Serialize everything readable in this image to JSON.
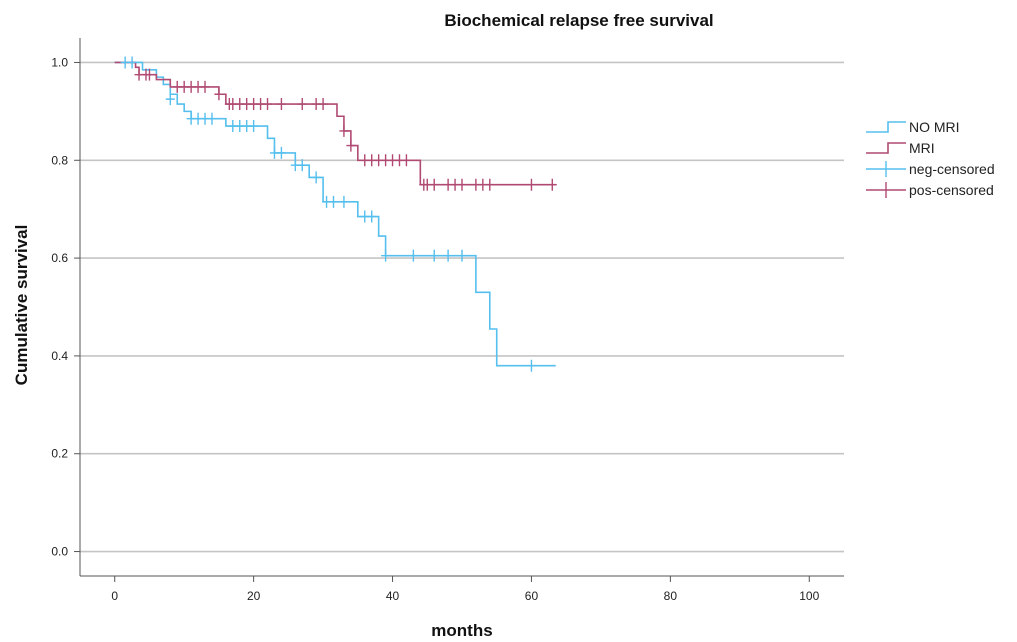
{
  "chart_data": {
    "type": "line",
    "title": "Biochemical relapse free survival",
    "xlabel": "months",
    "ylabel": "Cumulative survival",
    "xlim": [
      -5,
      105
    ],
    "ylim": [
      -0.05,
      1.05
    ],
    "x_ticks": [
      0,
      20,
      40,
      60,
      80,
      100
    ],
    "y_ticks": [
      0.0,
      0.2,
      0.4,
      0.6,
      0.8,
      1.0
    ],
    "x_tick_labels": [
      "0",
      "20",
      "40",
      "60",
      "80",
      "100"
    ],
    "y_tick_labels": [
      "0.0",
      "0.2",
      "0.4",
      "0.6",
      "0.8",
      "1.0"
    ],
    "grid": "horizontal",
    "legend_position": "right",
    "series": [
      {
        "name": "NO MRI",
        "color": "#55bfee",
        "censor_marker": "neg-censored",
        "steps": [
          [
            0,
            1.0
          ],
          [
            4,
            0.985
          ],
          [
            6,
            0.97
          ],
          [
            7,
            0.955
          ],
          [
            8,
            0.935
          ],
          [
            9,
            0.915
          ],
          [
            10,
            0.9
          ],
          [
            11,
            0.885
          ],
          [
            16,
            0.87
          ],
          [
            22,
            0.845
          ],
          [
            23,
            0.815
          ],
          [
            26,
            0.79
          ],
          [
            28,
            0.765
          ],
          [
            30,
            0.715
          ],
          [
            35,
            0.685
          ],
          [
            38,
            0.645
          ],
          [
            39,
            0.605
          ],
          [
            52,
            0.53
          ],
          [
            54,
            0.455
          ],
          [
            55,
            0.38
          ],
          [
            63.5,
            0.38
          ]
        ],
        "censored": [
          [
            1.5,
            1.0
          ],
          [
            2.5,
            1.0
          ],
          [
            8,
            0.925
          ],
          [
            11,
            0.885
          ],
          [
            12,
            0.885
          ],
          [
            13,
            0.885
          ],
          [
            14,
            0.885
          ],
          [
            17,
            0.87
          ],
          [
            18,
            0.87
          ],
          [
            19,
            0.87
          ],
          [
            20,
            0.87
          ],
          [
            23,
            0.815
          ],
          [
            24,
            0.815
          ],
          [
            26,
            0.79
          ],
          [
            27,
            0.79
          ],
          [
            29,
            0.765
          ],
          [
            30.5,
            0.715
          ],
          [
            31.5,
            0.715
          ],
          [
            33,
            0.715
          ],
          [
            36,
            0.685
          ],
          [
            37,
            0.685
          ],
          [
            39,
            0.605
          ],
          [
            43,
            0.605
          ],
          [
            46,
            0.605
          ],
          [
            48,
            0.605
          ],
          [
            50,
            0.605
          ],
          [
            60,
            0.38
          ]
        ]
      },
      {
        "name": "MRI",
        "color": "#b04a72",
        "censor_marker": "pos-censored",
        "steps": [
          [
            0,
            1.0
          ],
          [
            3,
            0.99
          ],
          [
            3.5,
            0.975
          ],
          [
            6,
            0.965
          ],
          [
            8,
            0.95
          ],
          [
            15,
            0.935
          ],
          [
            16,
            0.915
          ],
          [
            32,
            0.89
          ],
          [
            33,
            0.86
          ],
          [
            34,
            0.83
          ],
          [
            35,
            0.8
          ],
          [
            44,
            0.75
          ],
          [
            63.5,
            0.75
          ]
        ],
        "censored": [
          [
            3.5,
            0.975
          ],
          [
            4.5,
            0.975
          ],
          [
            5,
            0.975
          ],
          [
            9,
            0.95
          ],
          [
            10,
            0.95
          ],
          [
            11,
            0.95
          ],
          [
            12,
            0.95
          ],
          [
            13,
            0.95
          ],
          [
            15,
            0.935
          ],
          [
            16.5,
            0.915
          ],
          [
            17,
            0.915
          ],
          [
            18,
            0.915
          ],
          [
            19,
            0.915
          ],
          [
            20,
            0.915
          ],
          [
            21,
            0.915
          ],
          [
            22,
            0.915
          ],
          [
            24,
            0.915
          ],
          [
            27,
            0.915
          ],
          [
            29,
            0.915
          ],
          [
            30,
            0.915
          ],
          [
            33,
            0.86
          ],
          [
            34,
            0.83
          ],
          [
            36,
            0.8
          ],
          [
            37,
            0.8
          ],
          [
            38,
            0.8
          ],
          [
            39,
            0.8
          ],
          [
            40,
            0.8
          ],
          [
            41,
            0.8
          ],
          [
            42,
            0.8
          ],
          [
            44.5,
            0.75
          ],
          [
            45,
            0.75
          ],
          [
            46,
            0.75
          ],
          [
            48,
            0.75
          ],
          [
            49,
            0.75
          ],
          [
            50,
            0.75
          ],
          [
            52,
            0.75
          ],
          [
            53,
            0.75
          ],
          [
            54,
            0.75
          ],
          [
            60,
            0.75
          ],
          [
            63,
            0.75
          ]
        ]
      }
    ],
    "legend": [
      {
        "label": "NO MRI",
        "kind": "line",
        "color": "#55bfee"
      },
      {
        "label": "MRI",
        "kind": "line",
        "color": "#b04a72"
      },
      {
        "label": "neg-censored",
        "kind": "marker",
        "color": "#55bfee"
      },
      {
        "label": "pos-censored",
        "kind": "marker",
        "color": "#b04a72"
      }
    ]
  }
}
